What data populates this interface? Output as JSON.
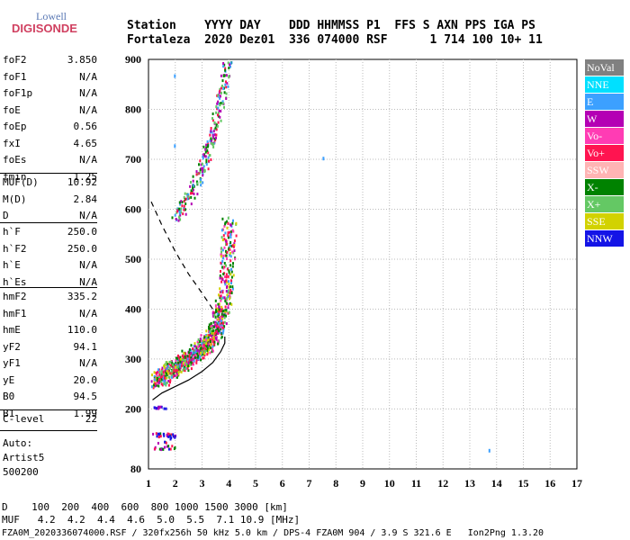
{
  "logo": {
    "top": "Lowell",
    "bottom": "DIGISONDE"
  },
  "header": {
    "row1": "Station    YYYY DAY    DDD HHMMSS P1  FFS S AXN PPS IGA PS",
    "row2": "Fortaleza  2020 Dez01  336 074000 RSF      1 714 100 10+ 11"
  },
  "params": [
    {
      "group": 1,
      "key": "foF2",
      "value": "3.850"
    },
    {
      "group": 1,
      "key": "foF1",
      "value": "N/A"
    },
    {
      "group": 1,
      "key": "foF1p",
      "value": "N/A"
    },
    {
      "group": 1,
      "key": "foE",
      "value": "N/A"
    },
    {
      "group": 1,
      "key": "foEp",
      "value": "0.56"
    },
    {
      "group": 1,
      "key": "fxI",
      "value": "4.65"
    },
    {
      "group": 1,
      "key": "foEs",
      "value": "N/A"
    },
    {
      "group": 1,
      "key": "fmin",
      "value": "1.25"
    },
    {
      "group": 2,
      "key": "MUF(D)",
      "value": "10.92"
    },
    {
      "group": 2,
      "key": "M(D)",
      "value": "2.84"
    },
    {
      "group": 2,
      "key": "D",
      "value": "N/A"
    },
    {
      "group": 3,
      "key": "h`F",
      "value": "250.0"
    },
    {
      "group": 3,
      "key": "h`F2",
      "value": "250.0"
    },
    {
      "group": 3,
      "key": "h`E",
      "value": "N/A"
    },
    {
      "group": 3,
      "key": "h`Es",
      "value": "N/A"
    },
    {
      "group": 4,
      "key": "hmF2",
      "value": "335.2"
    },
    {
      "group": 4,
      "key": "hmF1",
      "value": "N/A"
    },
    {
      "group": 4,
      "key": "hmE",
      "value": "110.0"
    },
    {
      "group": 4,
      "key": "yF2",
      "value": "94.1"
    },
    {
      "group": 4,
      "key": "yF1",
      "value": "N/A"
    },
    {
      "group": 4,
      "key": "yE",
      "value": "20.0"
    },
    {
      "group": 4,
      "key": "B0",
      "value": "94.5"
    },
    {
      "group": 4,
      "key": "B1",
      "value": "1.99"
    },
    {
      "group": 5,
      "key": "C-level",
      "value": "22"
    }
  ],
  "auto": {
    "line1": "Auto:",
    "line2": "Artist5",
    "line3": "500200"
  },
  "legend": [
    {
      "label": "NoVal",
      "color": "#808080"
    },
    {
      "label": "NNE",
      "color": "#00e0ff"
    },
    {
      "label": "E",
      "color": "#3ca0ff"
    },
    {
      "label": "W",
      "color": "#b400b4"
    },
    {
      "label": "Vo-",
      "color": "#ff3cb4"
    },
    {
      "label": "Vo+",
      "color": "#ff1450"
    },
    {
      "label": "SSW",
      "color": "#ffb4b4"
    },
    {
      "label": "X-",
      "color": "#008200"
    },
    {
      "label": "X+",
      "color": "#64c864"
    },
    {
      "label": "SSE",
      "color": "#d2d200"
    },
    {
      "label": "NNW",
      "color": "#1414e6"
    }
  ],
  "footer": {
    "d_line": "D    100  200  400  600  800 1000 1500 3000 [km]",
    "muf_line": "MUF   4.2  4.2  4.4  4.6  5.0  5.5  7.1 10.9 [MHz]",
    "file_line": "FZA0M_2020336074000.RSF / 320fx256h 50 kHz 5.0 km / DPS-4 FZA0M 904 / 3.9 S 321.6 E   Ion2Png 1.3.20"
  },
  "chart_data": {
    "type": "scatter",
    "xlim": [
      1,
      17
    ],
    "ylim": [
      80,
      900
    ],
    "xticks": [
      1,
      2,
      3,
      4,
      5,
      6,
      7,
      8,
      9,
      10,
      11,
      12,
      13,
      14,
      15,
      16,
      17
    ],
    "yticks": [
      80,
      200,
      300,
      400,
      500,
      600,
      700,
      800,
      900
    ],
    "grid": true,
    "trace_f_region": [
      [
        1.3,
        258
      ],
      [
        1.5,
        266
      ],
      [
        1.7,
        275
      ],
      [
        1.9,
        283
      ],
      [
        2.1,
        291
      ],
      [
        2.3,
        298
      ],
      [
        2.5,
        305
      ],
      [
        2.7,
        312
      ],
      [
        2.9,
        320
      ],
      [
        3.1,
        330
      ],
      [
        3.3,
        343
      ],
      [
        3.45,
        358
      ],
      [
        3.6,
        378
      ],
      [
        3.7,
        398
      ],
      [
        3.8,
        425
      ],
      [
        3.9,
        470
      ],
      [
        3.95,
        520
      ],
      [
        4.0,
        580
      ]
    ],
    "trace_oblique": [
      [
        2.0,
        585
      ],
      [
        2.3,
        610
      ],
      [
        2.6,
        640
      ],
      [
        2.9,
        670
      ],
      [
        3.1,
        700
      ],
      [
        3.3,
        740
      ],
      [
        3.5,
        780
      ],
      [
        3.7,
        830
      ],
      [
        3.85,
        870
      ],
      [
        3.95,
        900
      ]
    ],
    "trace_es": [
      [
        1.2,
        150
      ],
      [
        1.4,
        150
      ],
      [
        1.6,
        150
      ],
      [
        1.8,
        150
      ],
      [
        2.0,
        150
      ],
      [
        1.2,
        125
      ],
      [
        1.5,
        125
      ],
      [
        1.9,
        125
      ]
    ],
    "trace_low": [
      [
        1.2,
        205
      ],
      [
        1.4,
        205
      ],
      [
        1.6,
        205
      ]
    ],
    "isolated": [
      [
        7.5,
        705
      ],
      [
        13.7,
        120
      ],
      [
        1.95,
        730
      ],
      [
        1.95,
        870
      ]
    ],
    "profile_solid": [
      [
        1.15,
        218
      ],
      [
        1.5,
        232
      ],
      [
        2.0,
        245
      ],
      [
        2.5,
        258
      ],
      [
        3.0,
        275
      ],
      [
        3.4,
        293
      ],
      [
        3.7,
        315
      ],
      [
        3.85,
        332
      ],
      [
        3.85,
        345
      ]
    ],
    "profile_dashed": [
      [
        1.1,
        615
      ],
      [
        1.5,
        568
      ],
      [
        2.0,
        515
      ],
      [
        2.5,
        470
      ],
      [
        3.0,
        432
      ],
      [
        3.4,
        400
      ]
    ]
  }
}
